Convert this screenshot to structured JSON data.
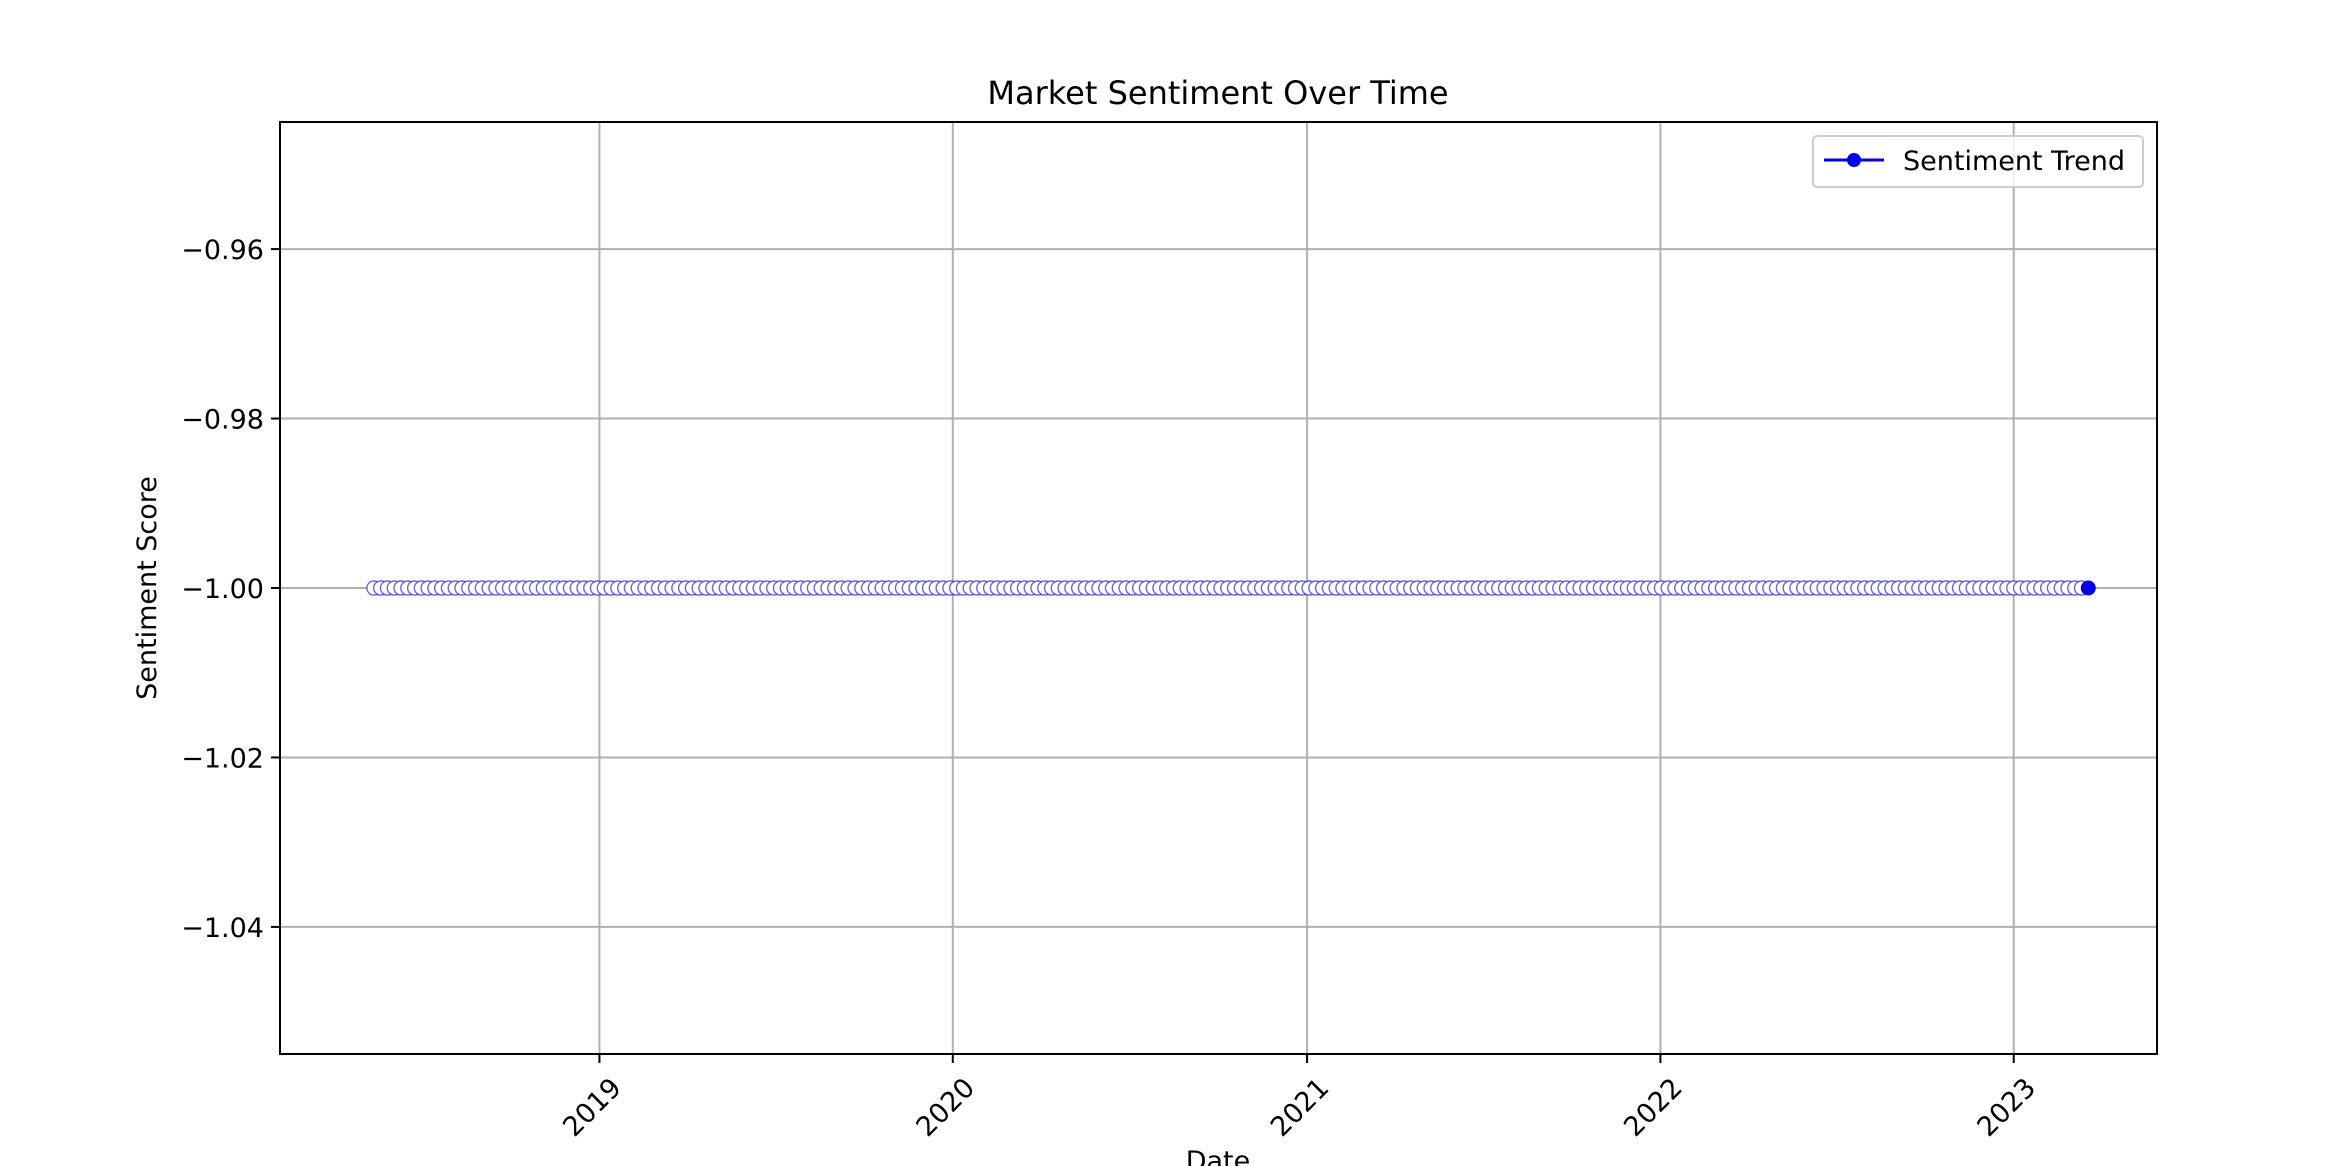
{
  "chart_data": {
    "type": "line",
    "title": "Market Sentiment Over Time",
    "xlabel": "Date",
    "ylabel": "Sentiment Score",
    "x_range": [
      "2018-02-05",
      "2023-05-29"
    ],
    "ylim": [
      -1.055,
      -0.945
    ],
    "x_ticks": [
      "2019",
      "2020",
      "2021",
      "2022",
      "2023"
    ],
    "y_ticks": [
      -0.96,
      -0.98,
      -1.0,
      -1.02,
      -1.04
    ],
    "y_tick_labels": [
      "−0.96",
      "−0.98",
      "−1.00",
      "−1.02",
      "−1.04"
    ],
    "grid": true,
    "legend_position": "upper-right",
    "series": [
      {
        "name": "Sentiment Trend",
        "color": "#0000ee",
        "marker": "circle",
        "frequency": "weekly",
        "x_start": "2018-05-13",
        "x_end": "2023-03-19",
        "constant_value": -1.0
      }
    ]
  }
}
